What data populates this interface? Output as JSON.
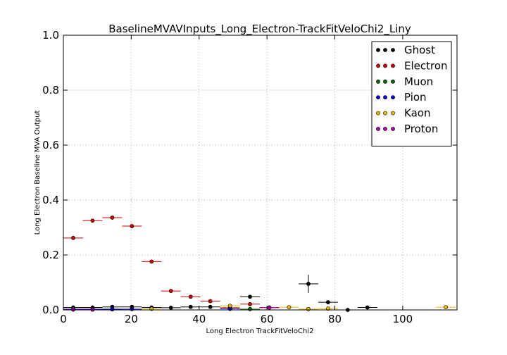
{
  "chart_data": {
    "type": "scatter",
    "title": "BaselineMVAVInputs_Long_Electron-TrackFitVeloChi2_Liny",
    "xlabel": "Long Electron TrackFitVeloChi2",
    "ylabel": "Long Electron Baseline MVA Output",
    "xlim": [
      0,
      116
    ],
    "ylim": [
      0,
      1.0
    ],
    "x_ticks": [
      0,
      20,
      40,
      60,
      80,
      100
    ],
    "y_ticks": [
      0.0,
      0.2,
      0.4,
      0.6,
      0.8,
      1.0
    ],
    "x_tick_labels": [
      "0",
      "20",
      "40",
      "60",
      "80",
      "100"
    ],
    "y_tick_labels": [
      "0.0",
      "0.2",
      "0.4",
      "0.6",
      "0.8",
      "1.0"
    ],
    "grid": true,
    "legend_position": "top-right",
    "series": [
      {
        "name": "Ghost",
        "color": "#000000",
        "points": [
          {
            "x": 2.9,
            "y": 0.009,
            "xerr": 2.9,
            "yerr": 0.003
          },
          {
            "x": 8.6,
            "y": 0.009,
            "xerr": 2.9,
            "yerr": 0.003
          },
          {
            "x": 14.4,
            "y": 0.011,
            "xerr": 2.9,
            "yerr": 0.003
          },
          {
            "x": 20.2,
            "y": 0.011,
            "xerr": 2.9,
            "yerr": 0.003
          },
          {
            "x": 26.0,
            "y": 0.009,
            "xerr": 2.9,
            "yerr": 0.003
          },
          {
            "x": 31.7,
            "y": 0.008,
            "xerr": 2.9,
            "yerr": 0.003
          },
          {
            "x": 37.5,
            "y": 0.011,
            "xerr": 2.9,
            "yerr": 0.004
          },
          {
            "x": 43.3,
            "y": 0.011,
            "xerr": 2.9,
            "yerr": 0.004
          },
          {
            "x": 55.0,
            "y": 0.048,
            "xerr": 2.9,
            "yerr": 0.006
          },
          {
            "x": 72.2,
            "y": 0.095,
            "xerr": 2.9,
            "yerr": 0.033
          },
          {
            "x": 78.0,
            "y": 0.028,
            "xerr": 2.9,
            "yerr": 0.006
          },
          {
            "x": 83.8,
            "y": 0.0,
            "xerr": 2.9,
            "yerr": 0.0
          },
          {
            "x": 89.6,
            "y": 0.009,
            "xerr": 2.9,
            "yerr": 0.004
          }
        ]
      },
      {
        "name": "Electron",
        "color": "#cc0000",
        "points": [
          {
            "x": 2.9,
            "y": 0.262,
            "xerr": 2.9,
            "yerr": 0.004
          },
          {
            "x": 8.6,
            "y": 0.325,
            "xerr": 2.9,
            "yerr": 0.004
          },
          {
            "x": 14.4,
            "y": 0.336,
            "xerr": 2.9,
            "yerr": 0.004
          },
          {
            "x": 20.2,
            "y": 0.305,
            "xerr": 2.9,
            "yerr": 0.004
          },
          {
            "x": 26.0,
            "y": 0.176,
            "xerr": 2.9,
            "yerr": 0.005
          },
          {
            "x": 31.7,
            "y": 0.069,
            "xerr": 2.9,
            "yerr": 0.007
          },
          {
            "x": 37.5,
            "y": 0.048,
            "xerr": 2.9,
            "yerr": 0.004
          },
          {
            "x": 43.3,
            "y": 0.032,
            "xerr": 2.9,
            "yerr": 0.003
          },
          {
            "x": 49.1,
            "y": 0.008,
            "xerr": 2.9,
            "yerr": 0.002
          },
          {
            "x": 55.0,
            "y": 0.021,
            "xerr": 2.9,
            "yerr": 0.006
          },
          {
            "x": 60.7,
            "y": 0.009,
            "xerr": 2.9,
            "yerr": 0.003
          }
        ]
      },
      {
        "name": "Muon",
        "color": "#006600",
        "points": [
          {
            "x": 2.9,
            "y": 0.002,
            "xerr": 2.9,
            "yerr": 0.001
          },
          {
            "x": 8.6,
            "y": 0.002,
            "xerr": 2.9,
            "yerr": 0.001
          },
          {
            "x": 14.4,
            "y": 0.002,
            "xerr": 2.9,
            "yerr": 0.001
          },
          {
            "x": 49.1,
            "y": 0.004,
            "xerr": 2.9,
            "yerr": 0.002
          },
          {
            "x": 55.0,
            "y": 0.003,
            "xerr": 2.9,
            "yerr": 0.002
          }
        ]
      },
      {
        "name": "Pion",
        "color": "#0000cc",
        "points": [
          {
            "x": 2.9,
            "y": 0.003,
            "xerr": 2.9,
            "yerr": 0.001
          },
          {
            "x": 8.6,
            "y": 0.003,
            "xerr": 2.9,
            "yerr": 0.001
          },
          {
            "x": 14.4,
            "y": 0.003,
            "xerr": 2.9,
            "yerr": 0.001
          },
          {
            "x": 20.2,
            "y": 0.003,
            "xerr": 2.9,
            "yerr": 0.001
          },
          {
            "x": 49.1,
            "y": 0.004,
            "xerr": 2.9,
            "yerr": 0.001
          }
        ]
      },
      {
        "name": "Kaon",
        "color": "#e6b800",
        "points": [
          {
            "x": 26.0,
            "y": 0.004,
            "xerr": 2.9,
            "yerr": 0.001
          },
          {
            "x": 49.1,
            "y": 0.015,
            "xerr": 2.9,
            "yerr": 0.003
          },
          {
            "x": 66.5,
            "y": 0.01,
            "xerr": 2.9,
            "yerr": 0.003
          },
          {
            "x": 72.2,
            "y": 0.003,
            "xerr": 2.9,
            "yerr": 0.002
          },
          {
            "x": 78.0,
            "y": 0.005,
            "xerr": 2.9,
            "yerr": 0.002
          },
          {
            "x": 112.7,
            "y": 0.01,
            "xerr": 2.9,
            "yerr": 0.003
          }
        ]
      },
      {
        "name": "Proton",
        "color": "#aa00aa",
        "points": [
          {
            "x": 2.9,
            "y": 0.001,
            "xerr": 2.9,
            "yerr": 0.0
          },
          {
            "x": 8.6,
            "y": 0.001,
            "xerr": 2.9,
            "yerr": 0.0
          },
          {
            "x": 60.7,
            "y": 0.008,
            "xerr": 2.9,
            "yerr": 0.002
          }
        ]
      }
    ]
  }
}
